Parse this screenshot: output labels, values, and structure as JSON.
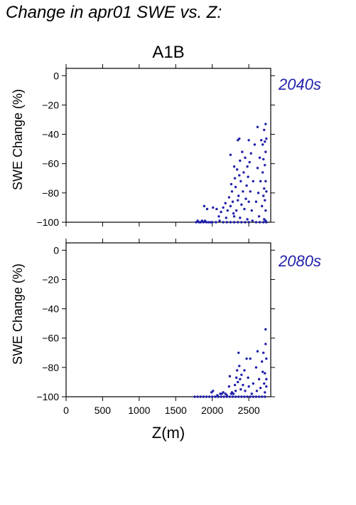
{
  "title": "Change in apr01 SWE vs. Z:",
  "colors": {
    "points": "#1f1faa",
    "period_label": "#1f1faa",
    "axes": "#000000"
  },
  "chart_data": [
    {
      "type": "scatter",
      "title": "A1B",
      "panel_label": "2040s",
      "xlabel": "",
      "ylabel": "SWE Change (%)",
      "xlim": [
        0,
        2800
      ],
      "ylim": [
        -100,
        5
      ],
      "x_ticks": [
        0,
        500,
        1000,
        1500,
        2000,
        2500
      ],
      "y_ticks": [
        0,
        -20,
        -40,
        -60,
        -80,
        -100
      ],
      "y_tick_labels": [
        "0",
        "−20",
        "−40",
        "−60",
        "−80",
        "−100"
      ],
      "grid": false,
      "points": [
        [
          1780,
          -100
        ],
        [
          1800,
          -99
        ],
        [
          1820,
          -100
        ],
        [
          1840,
          -100
        ],
        [
          1860,
          -99
        ],
        [
          1880,
          -100
        ],
        [
          1900,
          -99
        ],
        [
          1920,
          -100
        ],
        [
          1950,
          -100
        ],
        [
          1980,
          -100
        ],
        [
          1890,
          -89
        ],
        [
          1930,
          -91
        ],
        [
          2010,
          -90
        ],
        [
          2060,
          -91
        ],
        [
          2090,
          -96
        ],
        [
          2120,
          -93
        ],
        [
          2150,
          -90
        ],
        [
          2180,
          -87
        ],
        [
          2190,
          -97
        ],
        [
          2210,
          -92
        ],
        [
          2230,
          -83
        ],
        [
          2250,
          -89
        ],
        [
          2250,
          -54
        ],
        [
          2260,
          -74
        ],
        [
          2270,
          -79
        ],
        [
          2280,
          -86
        ],
        [
          2290,
          -94
        ],
        [
          2300,
          -62
        ],
        [
          2300,
          -96
        ],
        [
          2310,
          -70
        ],
        [
          2320,
          -76
        ],
        [
          2330,
          -92
        ],
        [
          2340,
          -64
        ],
        [
          2350,
          -44
        ],
        [
          2350,
          -85
        ],
        [
          2360,
          -82
        ],
        [
          2370,
          -43
        ],
        [
          2370,
          -68
        ],
        [
          2380,
          -58
        ],
        [
          2380,
          -97
        ],
        [
          2390,
          -72
        ],
        [
          2400,
          -88
        ],
        [
          2410,
          -52
        ],
        [
          2420,
          -79
        ],
        [
          2430,
          -66
        ],
        [
          2440,
          -91
        ],
        [
          2450,
          -56
        ],
        [
          2460,
          -84
        ],
        [
          2470,
          -75
        ],
        [
          2480,
          -62
        ],
        [
          2480,
          -98
        ],
        [
          2490,
          -69
        ],
        [
          2500,
          -44
        ],
        [
          2500,
          -86
        ],
        [
          2510,
          -59
        ],
        [
          2520,
          -79
        ],
        [
          2530,
          -53
        ],
        [
          2540,
          -92
        ],
        [
          2560,
          -72
        ],
        [
          2580,
          -47
        ],
        [
          2600,
          -86
        ],
        [
          2620,
          -35
        ],
        [
          2620,
          -63
        ],
        [
          2630,
          -80
        ],
        [
          2640,
          -96
        ],
        [
          2650,
          -56
        ],
        [
          2660,
          -72
        ],
        [
          2670,
          -44
        ],
        [
          2680,
          -89
        ],
        [
          2690,
          -47
        ],
        [
          2690,
          -66
        ],
        [
          2700,
          -82
        ],
        [
          2700,
          -57
        ],
        [
          2710,
          -37
        ],
        [
          2710,
          -77
        ],
        [
          2710,
          -98
        ],
        [
          2720,
          -45
        ],
        [
          2720,
          -61
        ],
        [
          2720,
          -85
        ],
        [
          2730,
          -33
        ],
        [
          2730,
          -52
        ],
        [
          2730,
          -72
        ],
        [
          2730,
          -92
        ],
        [
          2740,
          -43
        ],
        [
          2740,
          -79
        ],
        [
          2740,
          -100
        ],
        [
          2600,
          -100
        ],
        [
          2500,
          -100
        ],
        [
          2400,
          -100
        ],
        [
          2300,
          -100
        ],
        [
          2200,
          -100
        ],
        [
          2100,
          -99
        ],
        [
          2050,
          -100
        ],
        [
          2000,
          -100
        ],
        [
          2150,
          -100
        ],
        [
          2250,
          -100
        ],
        [
          2350,
          -100
        ],
        [
          2450,
          -100
        ],
        [
          2550,
          -99
        ],
        [
          2650,
          -100
        ],
        [
          2700,
          -100
        ],
        [
          2730,
          -99
        ]
      ]
    },
    {
      "type": "scatter",
      "panel_label": "2080s",
      "xlabel": "Z(m)",
      "ylabel": "SWE Change (%)",
      "xlim": [
        0,
        2800
      ],
      "ylim": [
        -100,
        5
      ],
      "x_ticks": [
        0,
        500,
        1000,
        1500,
        2000,
        2500
      ],
      "x_tick_labels": [
        "0",
        "500",
        "1000",
        "1500",
        "2000",
        "2500"
      ],
      "y_ticks": [
        0,
        -20,
        -40,
        -60,
        -80,
        -100
      ],
      "y_tick_labels": [
        "0",
        "−20",
        "−40",
        "−60",
        "−80",
        "−100"
      ],
      "grid": false,
      "points": [
        [
          1760,
          -100
        ],
        [
          1800,
          -100
        ],
        [
          1840,
          -100
        ],
        [
          1880,
          -100
        ],
        [
          1920,
          -100
        ],
        [
          1960,
          -100
        ],
        [
          2000,
          -100
        ],
        [
          2040,
          -100
        ],
        [
          2080,
          -100
        ],
        [
          2120,
          -100
        ],
        [
          2160,
          -100
        ],
        [
          2200,
          -100
        ],
        [
          2240,
          -100
        ],
        [
          2280,
          -100
        ],
        [
          2320,
          -100
        ],
        [
          2360,
          -100
        ],
        [
          2400,
          -100
        ],
        [
          2440,
          -100
        ],
        [
          2480,
          -100
        ],
        [
          2520,
          -100
        ],
        [
          2560,
          -100
        ],
        [
          2600,
          -100
        ],
        [
          2640,
          -100
        ],
        [
          2680,
          -100
        ],
        [
          2720,
          -100
        ],
        [
          1990,
          -97
        ],
        [
          2010,
          -96
        ],
        [
          2070,
          -99
        ],
        [
          2110,
          -98
        ],
        [
          2130,
          -98
        ],
        [
          2150,
          -97
        ],
        [
          2180,
          -98
        ],
        [
          2200,
          -99
        ],
        [
          2230,
          -93
        ],
        [
          2240,
          -86
        ],
        [
          2260,
          -98
        ],
        [
          2270,
          -97
        ],
        [
          2290,
          -98
        ],
        [
          2310,
          -92
        ],
        [
          2320,
          -96
        ],
        [
          2330,
          -87
        ],
        [
          2340,
          -82
        ],
        [
          2350,
          -90
        ],
        [
          2360,
          -70
        ],
        [
          2370,
          -79
        ],
        [
          2380,
          -88
        ],
        [
          2390,
          -95
        ],
        [
          2400,
          -85
        ],
        [
          2420,
          -92
        ],
        [
          2440,
          -82
        ],
        [
          2450,
          -96
        ],
        [
          2470,
          -74
        ],
        [
          2490,
          -87
        ],
        [
          2500,
          -93
        ],
        [
          2520,
          -74
        ],
        [
          2540,
          -98
        ],
        [
          2560,
          -91
        ],
        [
          2600,
          -80
        ],
        [
          2610,
          -96
        ],
        [
          2620,
          -69
        ],
        [
          2640,
          -88
        ],
        [
          2660,
          -94
        ],
        [
          2680,
          -76
        ],
        [
          2690,
          -83
        ],
        [
          2700,
          -70
        ],
        [
          2710,
          -91
        ],
        [
          2720,
          -84
        ],
        [
          2720,
          -97
        ],
        [
          2730,
          -54
        ],
        [
          2730,
          -64
        ],
        [
          2740,
          -74
        ],
        [
          2740,
          -88
        ],
        [
          2740,
          -93
        ]
      ]
    }
  ]
}
